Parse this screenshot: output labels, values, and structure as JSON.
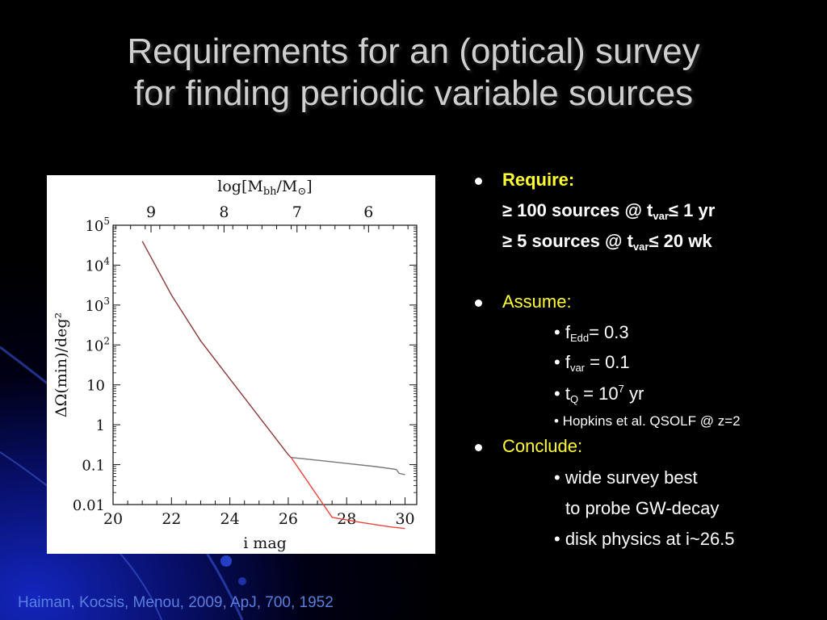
{
  "slide": {
    "title_line1": "Requirements for an (optical) survey",
    "title_line2": "for finding periodic variable sources",
    "citation": "Haiman, Kocsis, Menou, 2009, ApJ, 700, 1952"
  },
  "bullets": {
    "require_label": "Require:",
    "req1_pre": "≥ 100 sources @ t",
    "req1_sub": "var",
    "req1_post": "≤ 1 yr",
    "req2_pre": "≥ 5 sources @ t",
    "req2_sub": "var",
    "req2_post": "≤ 20 wk",
    "assume_label": "Assume:",
    "a1_pre": "• f",
    "a1_sub": "Edd",
    "a1_post": "= 0.3",
    "a2_pre": "• f",
    "a2_sub": "var",
    "a2_post": " = 0.1",
    "a3_pre": "• t",
    "a3_sub": "Q",
    "a3_mid": " = 10",
    "a3_sup": "7",
    "a3_post": " yr",
    "a4": "• Hopkins et al. QSOLF @ z=2",
    "conclude_label": "Conclude:",
    "c1": "• wide survey best",
    "c1b": "to probe GW-decay",
    "c2": "• disk physics at i~26.5"
  },
  "chart_data": {
    "type": "line",
    "title": "",
    "xlabel": "i  mag",
    "ylabel": "ΔΩ(min)/deg²",
    "top_xlabel": "log[M_bh/M_⊙]",
    "top_xlabel_parts": {
      "pre": "log[M",
      "sub": "bh",
      "mid": "/M",
      "sub2": "⊙",
      "post": "]"
    },
    "xlim": [
      20,
      30.4
    ],
    "ylim_log10": [
      -2,
      5
    ],
    "log_y": true,
    "x_ticks": [
      20,
      22,
      24,
      26,
      28,
      30
    ],
    "x_tick_labels": [
      "20",
      "22",
      "24",
      "26",
      "28",
      "30"
    ],
    "y_ticks_log10": [
      -2,
      -1,
      0,
      1,
      2,
      3,
      4,
      5
    ],
    "y_tick_labels": [
      {
        "main": "0.01",
        "sup": ""
      },
      {
        "main": "0.1",
        "sup": ""
      },
      {
        "main": "1",
        "sup": ""
      },
      {
        "main": "10",
        "sup": ""
      },
      {
        "main": "10",
        "sup": "2"
      },
      {
        "main": "10",
        "sup": "3"
      },
      {
        "main": "10",
        "sup": "4"
      },
      {
        "main": "10",
        "sup": "5"
      }
    ],
    "top_ticks": [
      {
        "label": "9",
        "x": 21.3
      },
      {
        "label": "8",
        "x": 23.8
      },
      {
        "label": "7",
        "x": 26.3
      },
      {
        "label": "6",
        "x": 28.75
      }
    ],
    "series": [
      {
        "color": "#8a3a3a",
        "points": [
          [
            21.0,
            4.6
          ],
          [
            22.0,
            3.25
          ],
          [
            23.0,
            2.1
          ],
          [
            24.0,
            1.15
          ],
          [
            25.0,
            0.2
          ],
          [
            26.0,
            -0.75
          ],
          [
            26.1,
            -0.82
          ]
        ]
      },
      {
        "color": "#777777",
        "points": [
          [
            26.1,
            -0.82
          ],
          [
            27.0,
            -0.89
          ],
          [
            28.0,
            -0.97
          ],
          [
            29.0,
            -1.05
          ],
          [
            29.7,
            -1.12
          ],
          [
            29.8,
            -1.22
          ],
          [
            30.0,
            -1.25
          ]
        ]
      },
      {
        "color": "#e8463e",
        "points": [
          [
            26.1,
            -0.82
          ],
          [
            27.5,
            -2.32
          ],
          [
            28.5,
            -2.45
          ],
          [
            29.5,
            -2.56
          ],
          [
            30.0,
            -2.6
          ]
        ]
      }
    ]
  }
}
